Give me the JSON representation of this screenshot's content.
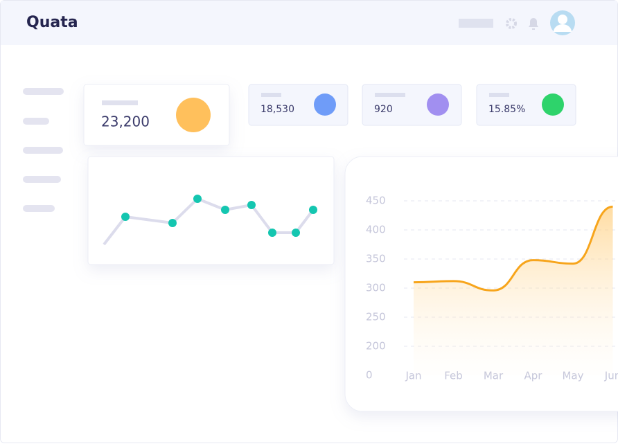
{
  "header": {
    "brand": "Quata"
  },
  "stats": [
    "23,200",
    "18,530",
    "920",
    "15.85%"
  ],
  "sparkline": {
    "type": "line",
    "x": [
      0,
      31,
      99,
      135,
      175,
      213,
      243,
      277,
      302
    ],
    "values": [
      0,
      40,
      31,
      66,
      50,
      57,
      17,
      17,
      50
    ],
    "color": "#14c6b0"
  },
  "chart_data": {
    "type": "area",
    "categories": [
      "Jan",
      "Feb",
      "Mar",
      "Apr",
      "May",
      "Jun"
    ],
    "series": [
      {
        "color": "#f7a51c",
        "values": [
          310,
          312,
          296,
          348,
          342,
          440
        ]
      }
    ],
    "ylim": [
      0,
      450
    ],
    "yticks": [
      0,
      200,
      250,
      300,
      350,
      400,
      450
    ],
    "grid": true
  }
}
